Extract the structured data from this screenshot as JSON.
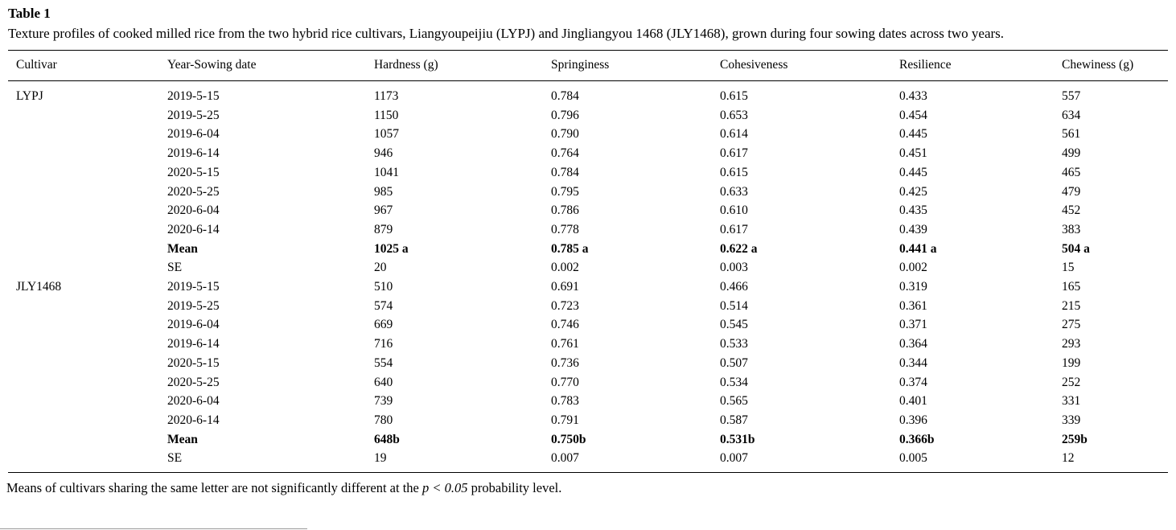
{
  "page": {
    "title": "Table 1",
    "caption": "Texture profiles of cooked milled rice from the two hybrid rice cultivars, Liangyoupeijiu (LYPJ) and Jingliangyou 1468 (JLY1468), grown during four sowing dates across two years.",
    "footnote": {
      "prefix": "Means of cultivars sharing the same letter are not significantly different at the ",
      "italic": "p < 0.05",
      "suffix": " probability level."
    }
  },
  "table": {
    "columns": [
      "Cultivar",
      "Year-Sowing date",
      "Hardness (g)",
      "Springiness",
      "Cohesiveness",
      "Resilience",
      "Chewiness (g)"
    ],
    "rows": [
      {
        "cultivar": "LYPJ",
        "label": "2019-5-15",
        "bold": false,
        "values": [
          "1173",
          "0.784",
          "0.615",
          "0.433",
          "557"
        ]
      },
      {
        "cultivar": "",
        "label": "2019-5-25",
        "bold": false,
        "values": [
          "1150",
          "0.796",
          "0.653",
          "0.454",
          "634"
        ]
      },
      {
        "cultivar": "",
        "label": "2019-6-04",
        "bold": false,
        "values": [
          "1057",
          "0.790",
          "0.614",
          "0.445",
          "561"
        ]
      },
      {
        "cultivar": "",
        "label": "2019-6-14",
        "bold": false,
        "values": [
          "946",
          "0.764",
          "0.617",
          "0.451",
          "499"
        ]
      },
      {
        "cultivar": "",
        "label": "2020-5-15",
        "bold": false,
        "values": [
          "1041",
          "0.784",
          "0.615",
          "0.445",
          "465"
        ]
      },
      {
        "cultivar": "",
        "label": "2020-5-25",
        "bold": false,
        "values": [
          "985",
          "0.795",
          "0.633",
          "0.425",
          "479"
        ]
      },
      {
        "cultivar": "",
        "label": "2020-6-04",
        "bold": false,
        "values": [
          "967",
          "0.786",
          "0.610",
          "0.435",
          "452"
        ]
      },
      {
        "cultivar": "",
        "label": "2020-6-14",
        "bold": false,
        "values": [
          "879",
          "0.778",
          "0.617",
          "0.439",
          "383"
        ]
      },
      {
        "cultivar": "",
        "label": "Mean",
        "bold": true,
        "values": [
          "1025 a",
          "0.785 a",
          "0.622 a",
          "0.441 a",
          "504 a"
        ]
      },
      {
        "cultivar": "",
        "label": "SE",
        "bold": false,
        "values": [
          "20",
          "0.002",
          "0.003",
          "0.002",
          "15"
        ]
      },
      {
        "cultivar": "JLY1468",
        "label": "2019-5-15",
        "bold": false,
        "values": [
          "510",
          "0.691",
          "0.466",
          "0.319",
          "165"
        ]
      },
      {
        "cultivar": "",
        "label": "2019-5-25",
        "bold": false,
        "values": [
          "574",
          "0.723",
          "0.514",
          "0.361",
          "215"
        ]
      },
      {
        "cultivar": "",
        "label": "2019-6-04",
        "bold": false,
        "values": [
          "669",
          "0.746",
          "0.545",
          "0.371",
          "275"
        ]
      },
      {
        "cultivar": "",
        "label": "2019-6-14",
        "bold": false,
        "values": [
          "716",
          "0.761",
          "0.533",
          "0.364",
          "293"
        ]
      },
      {
        "cultivar": "",
        "label": "2020-5-15",
        "bold": false,
        "values": [
          "554",
          "0.736",
          "0.507",
          "0.344",
          "199"
        ]
      },
      {
        "cultivar": "",
        "label": "2020-5-25",
        "bold": false,
        "values": [
          "640",
          "0.770",
          "0.534",
          "0.374",
          "252"
        ]
      },
      {
        "cultivar": "",
        "label": "2020-6-04",
        "bold": false,
        "values": [
          "739",
          "0.783",
          "0.565",
          "0.401",
          "331"
        ]
      },
      {
        "cultivar": "",
        "label": "2020-6-14",
        "bold": false,
        "values": [
          "780",
          "0.791",
          "0.587",
          "0.396",
          "339"
        ]
      },
      {
        "cultivar": "",
        "label": "Mean",
        "bold": true,
        "values": [
          "648b",
          "0.750b",
          "0.531b",
          "0.366b",
          "259b"
        ]
      },
      {
        "cultivar": "",
        "label": "SE",
        "bold": false,
        "values": [
          "19",
          "0.007",
          "0.007",
          "0.005",
          "12"
        ]
      }
    ]
  }
}
